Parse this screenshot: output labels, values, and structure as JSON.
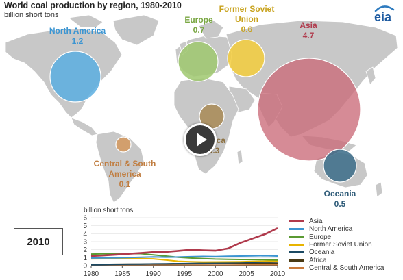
{
  "header": {
    "title": "World coal production by region, 1980-2010",
    "subtitle": "billion short tons",
    "logo_text": "eia"
  },
  "colors": {
    "map_land": "#c8c8c8",
    "map_border": "#ffffff",
    "axis": "#555555",
    "grid": "#e0e0e0"
  },
  "regions": [
    {
      "name": "North America",
      "value": "1.2",
      "color": "#5aaee0",
      "label_color": "#3b95d2"
    },
    {
      "name": "Europe",
      "value": "0.7",
      "color": "#9fc86e",
      "label_color": "#7aa743"
    },
    {
      "name": "Former Soviet Union",
      "value": "0.6",
      "color": "#f3cd3c",
      "label_color": "#c8a21c"
    },
    {
      "name": "Asia",
      "value": "4.7",
      "color": "#cb6a78",
      "label_color": "#b03a4c"
    },
    {
      "name": "Africa",
      "value": "0.3",
      "color": "#a88a55",
      "label_color": "#8c7040"
    },
    {
      "name": "Central & South America",
      "value": "0.1",
      "color": "#d39a63",
      "label_color": "#c07d40"
    },
    {
      "name": "Oceania",
      "value": "0.5",
      "color": "#3f6e8a",
      "label_color": "#2e5b78"
    }
  ],
  "labels": {
    "north_america_line1": "North America",
    "north_america_value": "1.2",
    "europe_line1": "Europe",
    "europe_value": "0.7",
    "fsu_line1": "Former Soviet",
    "fsu_line2": "Union",
    "fsu_value": "0.6",
    "asia_line1": "Asia",
    "asia_value": "4.7",
    "africa_line1": "Africa",
    "africa_value": "0.3",
    "csa_line1": "Central & South",
    "csa_line2": "America",
    "csa_value": "0.1",
    "oceania_line1": "Oceania",
    "oceania_value": "0.5"
  },
  "year_display": "2010",
  "chart_data": {
    "type": "line",
    "title": "",
    "ylabel": "billion short tons",
    "xlabel": "",
    "xlim": [
      1980,
      2010
    ],
    "ylim": [
      0,
      6
    ],
    "x_ticks": [
      1980,
      1985,
      1990,
      1995,
      2000,
      2005,
      2010
    ],
    "y_ticks": [
      0,
      1,
      2,
      3,
      4,
      5,
      6
    ],
    "x": [
      1980,
      1982,
      1984,
      1986,
      1988,
      1990,
      1992,
      1994,
      1996,
      1998,
      2000,
      2002,
      2004,
      2006,
      2008,
      2010
    ],
    "series": [
      {
        "name": "Asia",
        "color": "#b03a4c",
        "values": [
          1.2,
          1.28,
          1.38,
          1.48,
          1.58,
          1.7,
          1.72,
          1.85,
          2.0,
          1.92,
          1.88,
          2.15,
          2.85,
          3.4,
          3.95,
          4.7
        ]
      },
      {
        "name": "North America",
        "color": "#3b95d2",
        "values": [
          0.95,
          0.96,
          0.98,
          1.0,
          1.05,
          1.1,
          1.06,
          1.08,
          1.12,
          1.16,
          1.14,
          1.18,
          1.2,
          1.23,
          1.24,
          1.2
        ]
      },
      {
        "name": "Europe",
        "color": "#5a9a32",
        "values": [
          1.45,
          1.48,
          1.47,
          1.5,
          1.5,
          1.35,
          1.2,
          1.05,
          0.95,
          0.88,
          0.82,
          0.8,
          0.77,
          0.76,
          0.74,
          0.7
        ]
      },
      {
        "name": "Former Soviet Union",
        "color": "#e8b400",
        "values": [
          0.85,
          0.86,
          0.87,
          0.88,
          0.88,
          0.85,
          0.7,
          0.55,
          0.5,
          0.46,
          0.47,
          0.48,
          0.5,
          0.53,
          0.56,
          0.6
        ]
      },
      {
        "name": "Oceania",
        "color": "#1c4a63",
        "values": [
          0.12,
          0.14,
          0.16,
          0.18,
          0.2,
          0.22,
          0.24,
          0.26,
          0.28,
          0.3,
          0.34,
          0.36,
          0.4,
          0.42,
          0.46,
          0.5
        ]
      },
      {
        "name": "Africa",
        "color": "#4a3a14",
        "values": [
          0.14,
          0.16,
          0.18,
          0.19,
          0.2,
          0.21,
          0.21,
          0.22,
          0.24,
          0.25,
          0.26,
          0.26,
          0.27,
          0.28,
          0.29,
          0.3
        ]
      },
      {
        "name": "Central & South America",
        "color": "#c97a3a",
        "values": [
          0.02,
          0.02,
          0.03,
          0.03,
          0.03,
          0.04,
          0.04,
          0.04,
          0.05,
          0.06,
          0.06,
          0.07,
          0.08,
          0.09,
          0.1,
          0.1
        ]
      }
    ]
  }
}
